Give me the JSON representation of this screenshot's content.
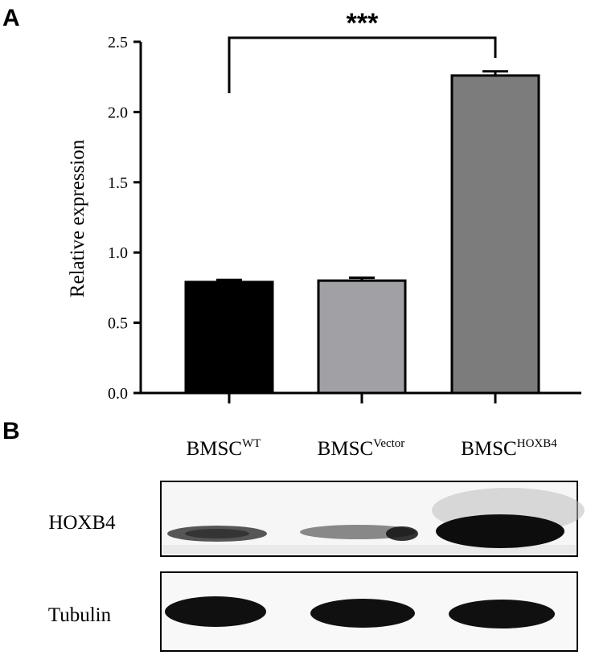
{
  "panels": {
    "a": "A",
    "b": "B"
  },
  "chart_data": {
    "type": "bar",
    "categories": [
      {
        "base": "BMSC",
        "sup": "WT"
      },
      {
        "base": "BMSC",
        "sup": "Vector"
      },
      {
        "base": "BMSC",
        "sup": "HOXB4"
      }
    ],
    "values": [
      0.79,
      0.8,
      2.26
    ],
    "errors": [
      0.015,
      0.02,
      0.03
    ],
    "ylabel": "Relative expression",
    "xlabel": "",
    "ylim": [
      0,
      2.5
    ],
    "yticks": [
      "0.0",
      "0.5",
      "1.0",
      "1.5",
      "2.0",
      "2.5"
    ],
    "grid": false,
    "colors": [
      "#000000",
      "#a0a0a5",
      "#7c7c7c"
    ],
    "significance": {
      "from": 0,
      "to": 2,
      "label": "***"
    }
  },
  "blot": {
    "rows": [
      {
        "label": "HOXB4"
      },
      {
        "label": "Tubulin"
      }
    ]
  }
}
